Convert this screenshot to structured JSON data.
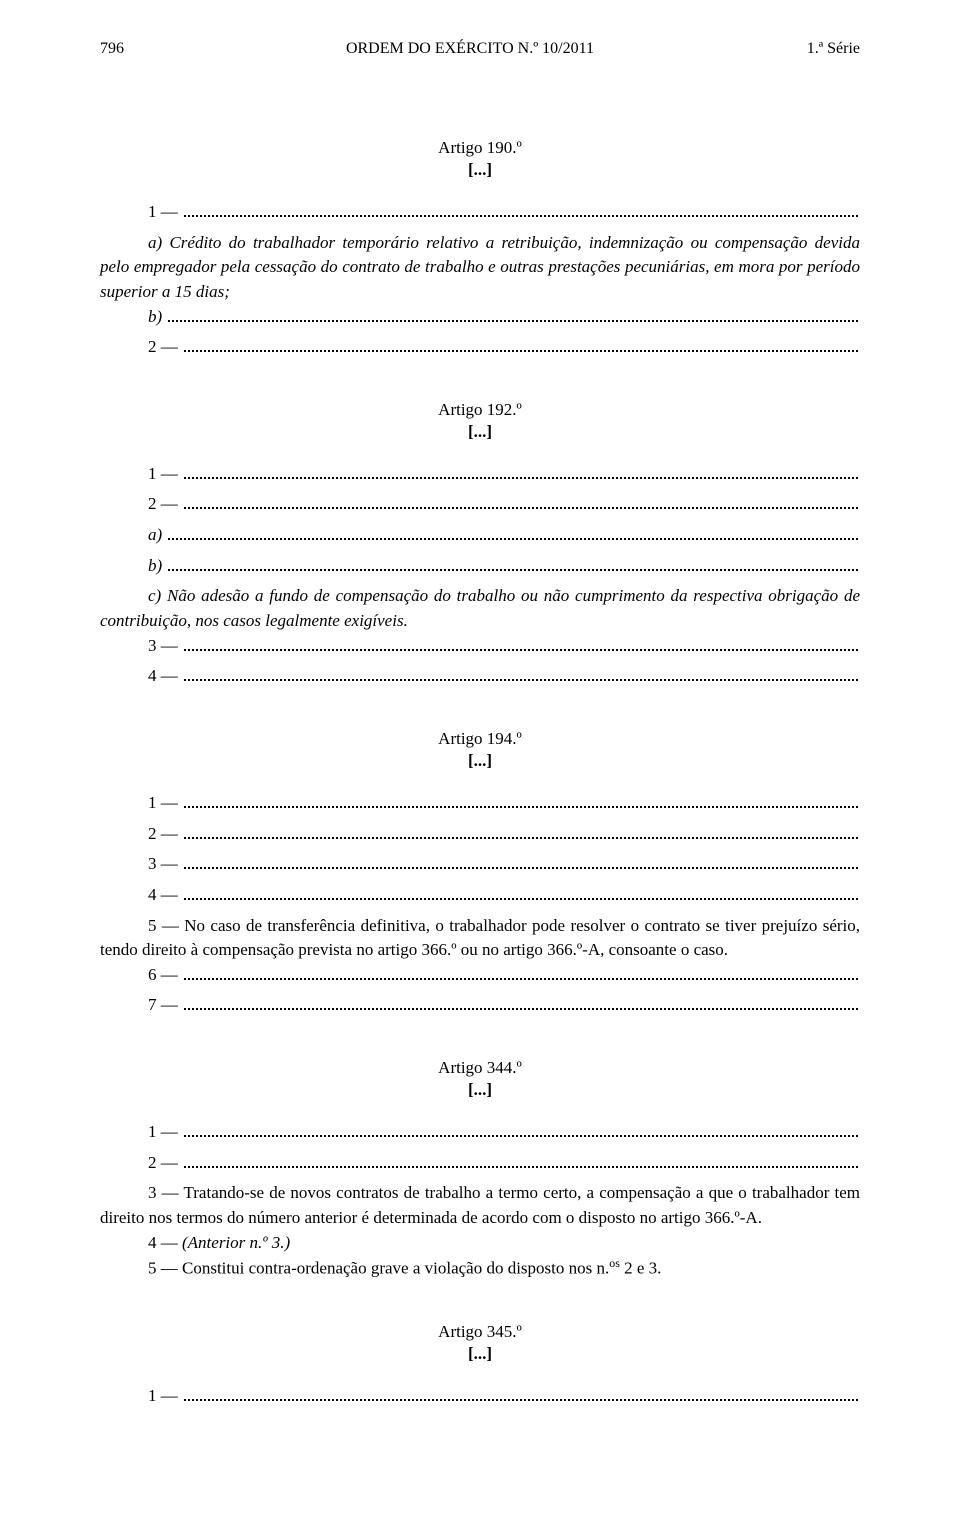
{
  "header": {
    "page_number": "796",
    "title": "ORDEM  DO  EXÉRCITO  N.º  10/2011",
    "series": "1.ª Série"
  },
  "artigo190": {
    "title": "Artigo 190.º",
    "sub": "[...]",
    "item1_lead": "1 — ",
    "a_text": "a) Crédito do trabalhador temporário relativo a retribuição, indemnização ou compensação devida pelo empregador pela cessação do contrato de trabalho e outras prestações pecuniárias, em mora por período superior a 15 dias;",
    "b_lead": "b) ",
    "item2_lead": "2 — "
  },
  "artigo192": {
    "title": "Artigo 192.º",
    "sub": "[...]",
    "item1_lead": "1 — ",
    "item2_lead": "2 — ",
    "a_lead": "a) ",
    "b_lead": "b) ",
    "c_text": "c) Não adesão a fundo de compensação do trabalho ou não cumprimento da respectiva obrigação de contribuição, nos casos legalmente exigíveis.",
    "item3_lead": "3 — ",
    "item4_lead": "4 — "
  },
  "artigo194": {
    "title": "Artigo 194.º",
    "sub": "[...]",
    "item1_lead": "1 — ",
    "item2_lead": "2 — ",
    "item3_lead": "3 — ",
    "item4_lead": "4 — ",
    "item5_text": "5 — No caso de transferência definitiva, o trabalhador pode resolver o contrato se tiver prejuízo sério, tendo direito à compensação prevista no artigo 366.º ou no artigo 366.º-A, consoante o caso.",
    "item6_lead": "6 — ",
    "item7_lead": "7 — "
  },
  "artigo344": {
    "title": "Artigo 344.º",
    "sub": "[...]",
    "item1_lead": "1 — ",
    "item2_lead": "2 — ",
    "item3_text": "3 — Tratando-se de novos contratos de trabalho a termo certo, a compensação a que o trabalhador tem direito nos termos do número anterior é determinada de acordo com o disposto no artigo 366.º-A.",
    "item4_prefix": "4 — ",
    "item4_italic": "(Anterior n.º 3.)",
    "item5_prefix": "5 —   Constitui contra-ordenação grave a violação do disposto nos n.",
    "item5_sup": "os",
    "item5_suffix": " 2 e 3."
  },
  "artigo345": {
    "title": "Artigo 345.º",
    "sub": "[...]",
    "item1_lead": "1 — "
  }
}
